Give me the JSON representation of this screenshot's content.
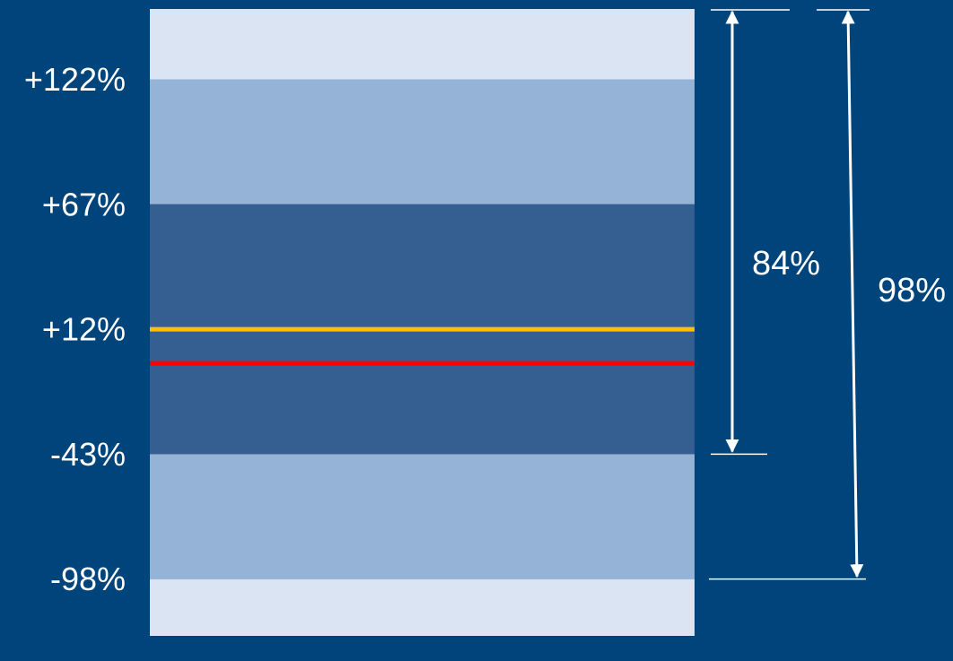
{
  "colors": {
    "background": "#00447C",
    "band_outer": "#DAE4F2",
    "band_middle": "#95B2D7",
    "band_inner": "#365F91",
    "line_yellow": "#FFC000",
    "line_red": "#FF0000",
    "annotation": "#FFFFFF"
  },
  "chart_data": {
    "type": "bar",
    "orientation": "vertical",
    "title": "",
    "xlabel": "",
    "ylabel": "",
    "ylim": [
      -123,
      153
    ],
    "grid": false,
    "legend": "none",
    "tick_values": [
      122,
      67,
      12,
      -43,
      -98
    ],
    "tick_labels": [
      "+122%",
      "+67%",
      "+12%",
      "-43%",
      "-98%"
    ],
    "bands": [
      {
        "from": 122,
        "to": 153,
        "color": "#DAE4F2"
      },
      {
        "from": 67,
        "to": 122,
        "color": "#95B2D7"
      },
      {
        "from": -43,
        "to": 67,
        "color": "#365F91"
      },
      {
        "from": -98,
        "to": -43,
        "color": "#95B2D7"
      },
      {
        "from": -123,
        "to": -98,
        "color": "#DAE4F2"
      }
    ],
    "reference_lines": [
      {
        "value": 12,
        "color": "#FFC000"
      },
      {
        "value": -3,
        "color": "#FF0000"
      }
    ],
    "spans": [
      {
        "label": "84%",
        "from": 153,
        "to": -43
      },
      {
        "label": "98%",
        "from": 153,
        "to": -98
      }
    ]
  }
}
